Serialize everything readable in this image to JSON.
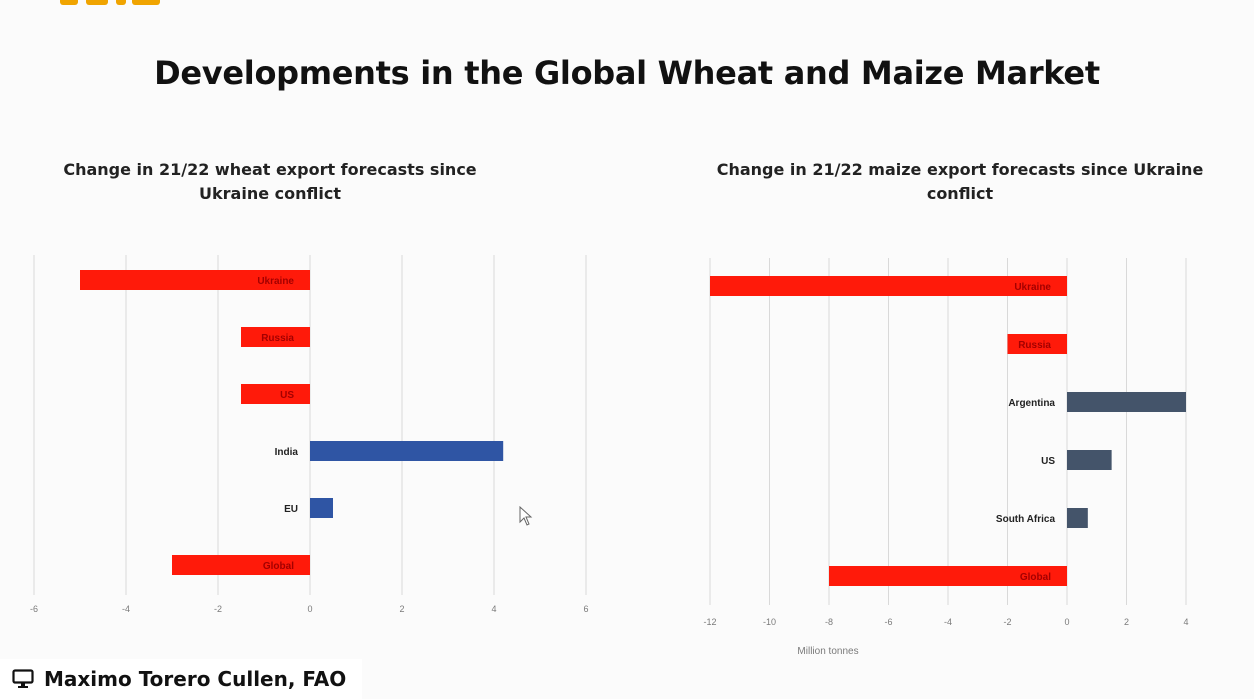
{
  "slide": {
    "title": "Developments in the Global Wheat and Maize Market"
  },
  "presenter": {
    "name": "Maximo Torero Cullen, FAO",
    "icon": "screen-share-icon"
  },
  "colors": {
    "negative": "#ff1a0a",
    "wheat_positive": "#2f55a4",
    "maize_positive": "#44546a",
    "grid": "#d9d9d9",
    "tick_text": "#7a7a7a",
    "label_text": "#222222"
  },
  "chart_data": [
    {
      "id": "wheat",
      "type": "bar",
      "orientation": "horizontal",
      "title": "Change in 21/22 wheat export forecasts since Ukraine conflict",
      "categories": [
        "Ukraine",
        "Russia",
        "US",
        "India",
        "EU",
        "Global"
      ],
      "values": [
        -5,
        -1.5,
        -1.5,
        4.2,
        0.5,
        -3
      ],
      "xlim": [
        -6,
        6
      ],
      "xticks": [
        -6,
        -4,
        -2,
        0,
        2,
        4,
        6
      ],
      "xlabel": "",
      "grid": true
    },
    {
      "id": "maize",
      "type": "bar",
      "orientation": "horizontal",
      "title": "Change in 21/22 maize export forecasts since Ukraine conflict",
      "categories": [
        "Ukraine",
        "Russia",
        "Argentina",
        "US",
        "South Africa",
        "Global"
      ],
      "values": [
        -12,
        -2,
        4,
        1.5,
        0.7,
        -8
      ],
      "xlim": [
        -12,
        4
      ],
      "xticks": [
        -12,
        -10,
        -8,
        -6,
        -4,
        -2,
        0,
        2,
        4
      ],
      "xlabel": "Million tonnes",
      "grid": true
    }
  ]
}
